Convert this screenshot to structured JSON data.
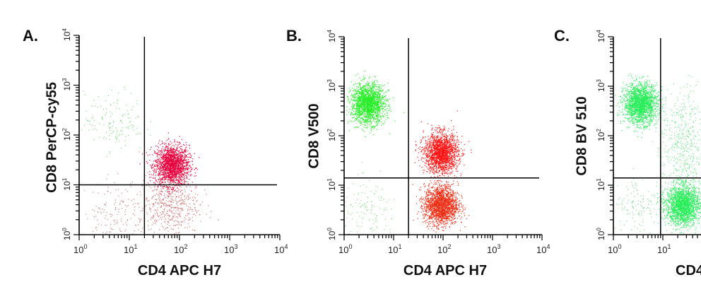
{
  "chart_data": [
    {
      "type": "scatter",
      "panel": "A.",
      "title": "",
      "xlabel": "CD4 APC H7",
      "ylabel": "CD8 PerCP-cy55",
      "xscale": "log",
      "yscale": "log",
      "xlim": [
        1,
        10000
      ],
      "ylim": [
        1,
        10000
      ],
      "x_ticks": [
        "10^0",
        "10^1",
        "10^2",
        "10^3",
        "10^4"
      ],
      "y_ticks": [
        "10^0",
        "10^1",
        "10^2",
        "10^3",
        "10^4"
      ],
      "gates": {
        "vertical_x": 20,
        "horizontal_y": 10
      },
      "populations": [
        {
          "name": "CD4+ main cluster",
          "color": "#e8003c",
          "center_x": 70,
          "center_y": 25,
          "density": "high"
        },
        {
          "name": "CD4+CD8- low",
          "color": "#c04040",
          "center_x": 60,
          "center_y": 4,
          "density": "medium"
        },
        {
          "name": "CD8+ sparse",
          "color": "#44cc44",
          "center_x": 5,
          "center_y": 180,
          "density": "low"
        },
        {
          "name": "double-negative sparse",
          "color": "#aa5555",
          "center_x": 5,
          "center_y": 3,
          "density": "low"
        }
      ]
    },
    {
      "type": "scatter",
      "panel": "B.",
      "title": "",
      "xlabel": "CD4 APC H7",
      "ylabel": "CD8 V500",
      "xscale": "log",
      "yscale": "log",
      "xlim": [
        1,
        10000
      ],
      "ylim": [
        1,
        10000
      ],
      "x_ticks": [
        "10^0",
        "10^1",
        "10^2",
        "10^3",
        "10^4"
      ],
      "y_ticks": [
        "10^0",
        "10^1",
        "10^2",
        "10^3",
        "10^4"
      ],
      "gates": {
        "vertical_x": 20,
        "horizontal_y": 14
      },
      "populations": [
        {
          "name": "CD8+ cluster",
          "color": "#22ee22",
          "center_x": 3,
          "center_y": 450,
          "density": "high"
        },
        {
          "name": "CD4+ upper cluster",
          "color": "#ff1010",
          "center_x": 90,
          "center_y": 45,
          "density": "high"
        },
        {
          "name": "CD4+ lower cluster",
          "color": "#ee2a10",
          "center_x": 90,
          "center_y": 4,
          "density": "high"
        },
        {
          "name": "double-negative sparse",
          "color": "#66cc66",
          "center_x": 3,
          "center_y": 3,
          "density": "low"
        }
      ]
    },
    {
      "type": "scatter",
      "panel": "C.",
      "title": "",
      "xlabel": "CD4",
      "ylabel": "CD8 BV 510",
      "xscale": "log",
      "yscale": "log",
      "xlim": [
        1,
        10000
      ],
      "ylim": [
        1,
        10000
      ],
      "x_ticks": [
        "10^0",
        "10^1"
      ],
      "y_ticks": [
        "10^0",
        "10^1",
        "10^2",
        "10^3",
        "10^4"
      ],
      "gates": {
        "vertical_x": 9,
        "horizontal_y": 14
      },
      "populations": [
        {
          "name": "CD8+ cluster",
          "color": "#22ee55",
          "center_x": 3.5,
          "center_y": 450,
          "density": "high"
        },
        {
          "name": "CD4+ main cluster",
          "color": "#22ee55",
          "center_x": 25,
          "center_y": 4,
          "density": "high"
        },
        {
          "name": "CD4+ tail",
          "color": "#44dd66",
          "center_x": 25,
          "center_y": 60,
          "density": "medium"
        },
        {
          "name": "double-negative sparse",
          "color": "#44cc66",
          "center_x": 3.5,
          "center_y": 4,
          "density": "low"
        }
      ]
    }
  ],
  "panels": [
    {
      "label": "A.",
      "xlabel": "CD4 APC H7",
      "ylabel": "CD8 PerCP-cy55"
    },
    {
      "label": "B.",
      "xlabel": "CD4 APC H7",
      "ylabel": "CD8 V500"
    },
    {
      "label": "C.",
      "xlabel": "CD4",
      "ylabel": "CD8 BV 510"
    }
  ]
}
